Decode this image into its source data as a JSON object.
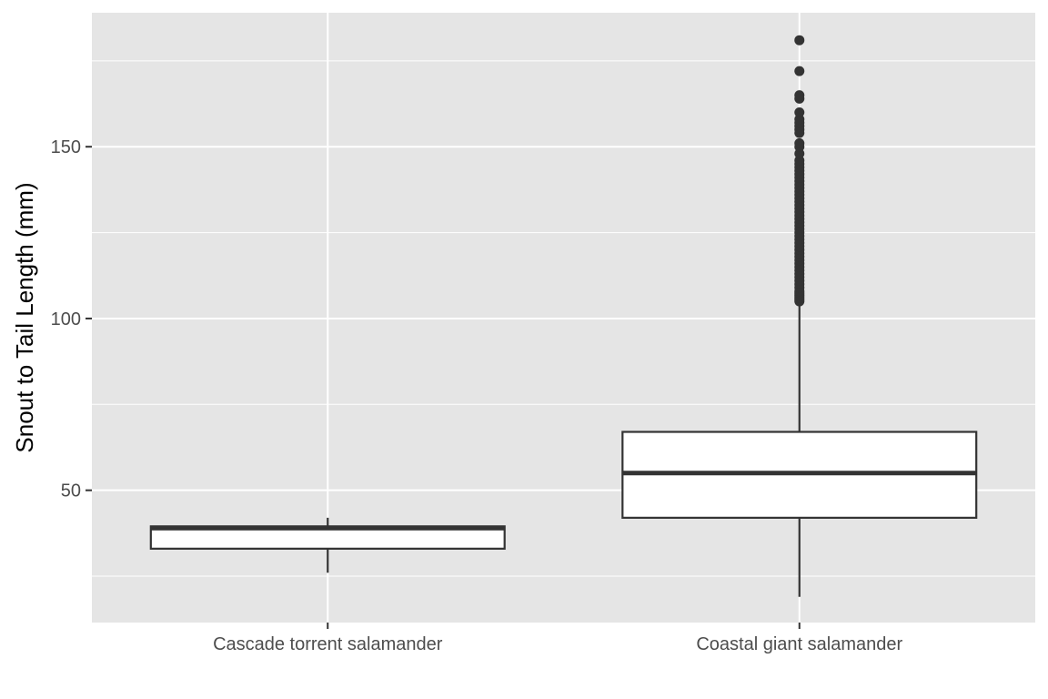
{
  "chart_data": {
    "type": "boxplot",
    "title": "",
    "xlabel": "",
    "ylabel": "Snout to Tail Length (mm)",
    "categories": [
      "Cascade torrent salamander",
      "Coastal giant salamander"
    ],
    "ylim": [
      11.5,
      189
    ],
    "y_ticks": [
      50,
      100,
      150
    ],
    "grid": true,
    "colors": {
      "panel_background": "#e5e5e5",
      "grid_line": "#ffffff",
      "box_fill": "#ffffff",
      "box_line": "#333333",
      "tick_text": "#4d4d4d"
    },
    "boxes": [
      {
        "category": "Cascade torrent salamander",
        "whisker_low": 26,
        "q1": 33,
        "median": 39,
        "q3": 39.5,
        "whisker_high": 42,
        "outliers": []
      },
      {
        "category": "Coastal giant salamander",
        "whisker_low": 19,
        "q1": 42,
        "median": 55,
        "q3": 67,
        "whisker_high": 104,
        "outliers": [
          105,
          105.5,
          106,
          106.5,
          107,
          107.5,
          108,
          109,
          110,
          111,
          112,
          113,
          114,
          115,
          116,
          117,
          118,
          119,
          120,
          121,
          122,
          123,
          124,
          125,
          126,
          127,
          128,
          129,
          130,
          131,
          132,
          133,
          134,
          135,
          136,
          137,
          138,
          139,
          140,
          141,
          142,
          143,
          144,
          145,
          146,
          148,
          150,
          151,
          154,
          155,
          156,
          157,
          158,
          160,
          164,
          165,
          172,
          181
        ]
      }
    ]
  }
}
